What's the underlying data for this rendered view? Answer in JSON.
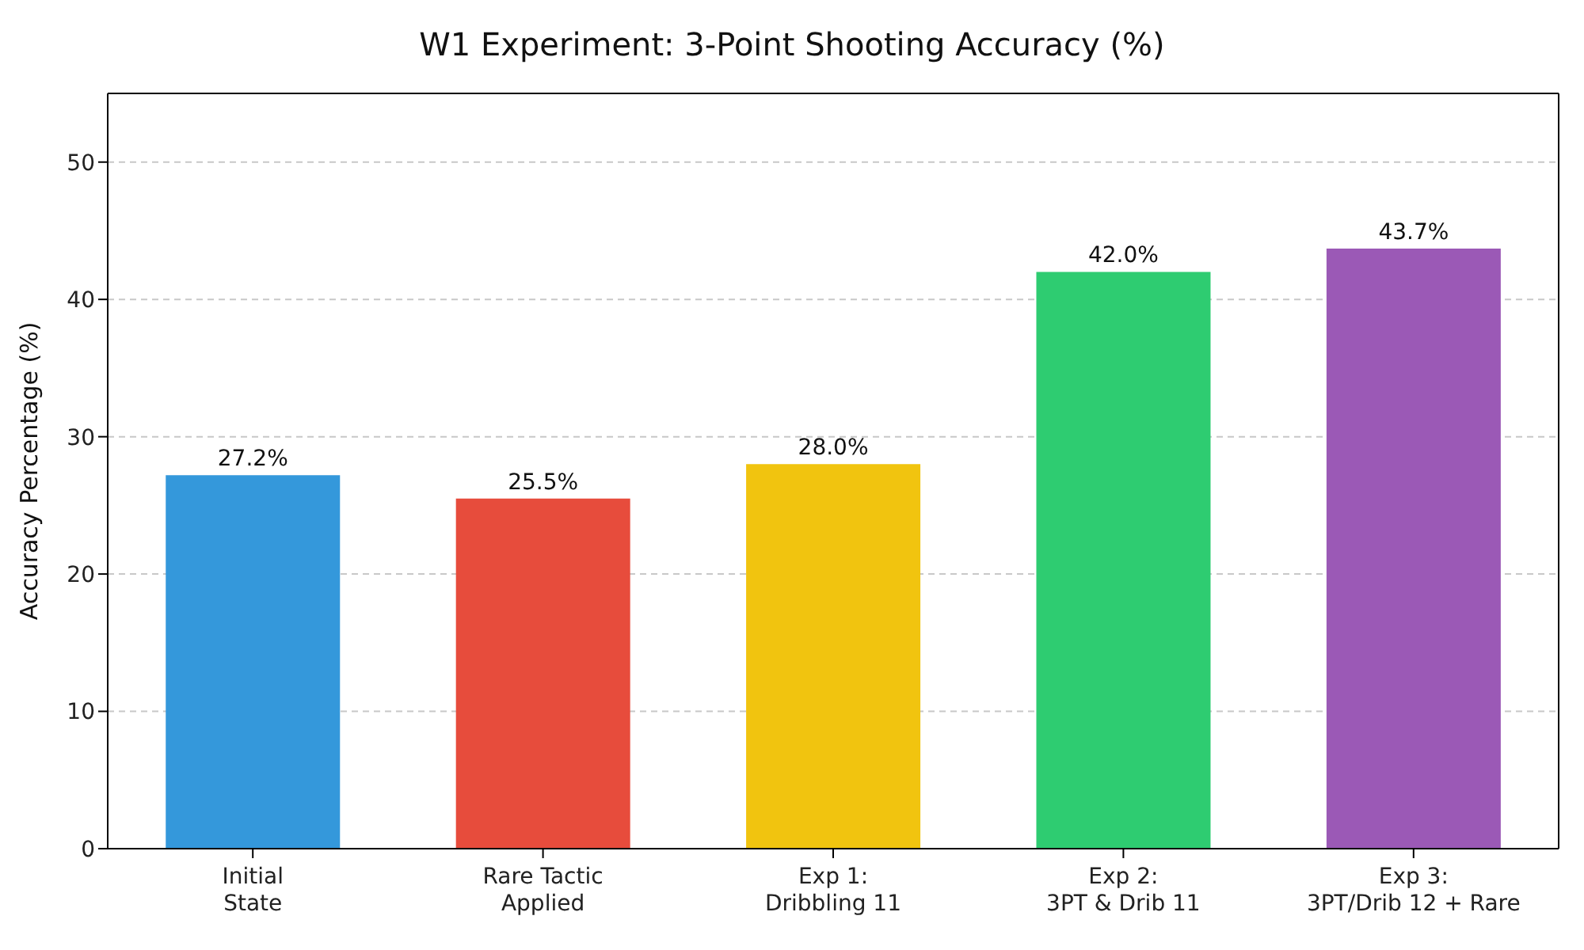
{
  "chart_data": {
    "type": "bar",
    "title": "W1 Experiment: 3-Point Shooting Accuracy (%)",
    "ylabel": "Accuracy Percentage (%)",
    "categories": [
      "Initial\nState",
      "Rare Tactic\nApplied",
      "Exp 1:\nDribbling 11",
      "Exp 2:\n3PT & Drib 11",
      "Exp 3:\n3PT/Drib 12 + Rare"
    ],
    "values": [
      27.2,
      25.5,
      28.0,
      42.0,
      43.7
    ],
    "colors": [
      "#3498db",
      "#e74c3c",
      "#f1c40f",
      "#2ecc71",
      "#9b59b6"
    ],
    "value_labels": [
      "27.2%",
      "25.5%",
      "28.0%",
      "42.0%",
      "43.7%"
    ],
    "ylim": [
      0,
      55
    ],
    "yticks": [
      0,
      10,
      20,
      30,
      40,
      50
    ],
    "grid": "y"
  }
}
